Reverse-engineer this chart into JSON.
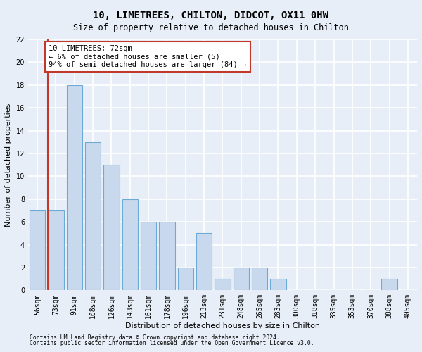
{
  "title": "10, LIMETREES, CHILTON, DIDCOT, OX11 0HW",
  "subtitle": "Size of property relative to detached houses in Chilton",
  "xlabel": "Distribution of detached houses by size in Chilton",
  "ylabel": "Number of detached properties",
  "categories": [
    "56sqm",
    "73sqm",
    "91sqm",
    "108sqm",
    "126sqm",
    "143sqm",
    "161sqm",
    "178sqm",
    "196sqm",
    "213sqm",
    "231sqm",
    "248sqm",
    "265sqm",
    "283sqm",
    "300sqm",
    "318sqm",
    "335sqm",
    "353sqm",
    "370sqm",
    "388sqm",
    "405sqm"
  ],
  "values": [
    7,
    7,
    18,
    13,
    11,
    8,
    6,
    6,
    2,
    5,
    1,
    2,
    2,
    1,
    0,
    0,
    0,
    0,
    0,
    1,
    0
  ],
  "bar_color": "#c9d9ed",
  "bar_edge_color": "#6aaad4",
  "vline_color": "#c0392b",
  "annotation_text": "10 LIMETREES: 72sqm\n← 6% of detached houses are smaller (5)\n94% of semi-detached houses are larger (84) →",
  "annotation_box_color": "white",
  "annotation_box_edge": "#c0392b",
  "ylim": [
    0,
    22
  ],
  "yticks": [
    0,
    2,
    4,
    6,
    8,
    10,
    12,
    14,
    16,
    18,
    20,
    22
  ],
  "footnote1": "Contains HM Land Registry data © Crown copyright and database right 2024.",
  "footnote2": "Contains public sector information licensed under the Open Government Licence v3.0.",
  "background_color": "#e8eef7",
  "grid_color": "white",
  "title_fontsize": 10,
  "subtitle_fontsize": 8.5,
  "axis_label_fontsize": 8,
  "tick_fontsize": 7,
  "annotation_fontsize": 7.5,
  "footnote_fontsize": 5.8
}
